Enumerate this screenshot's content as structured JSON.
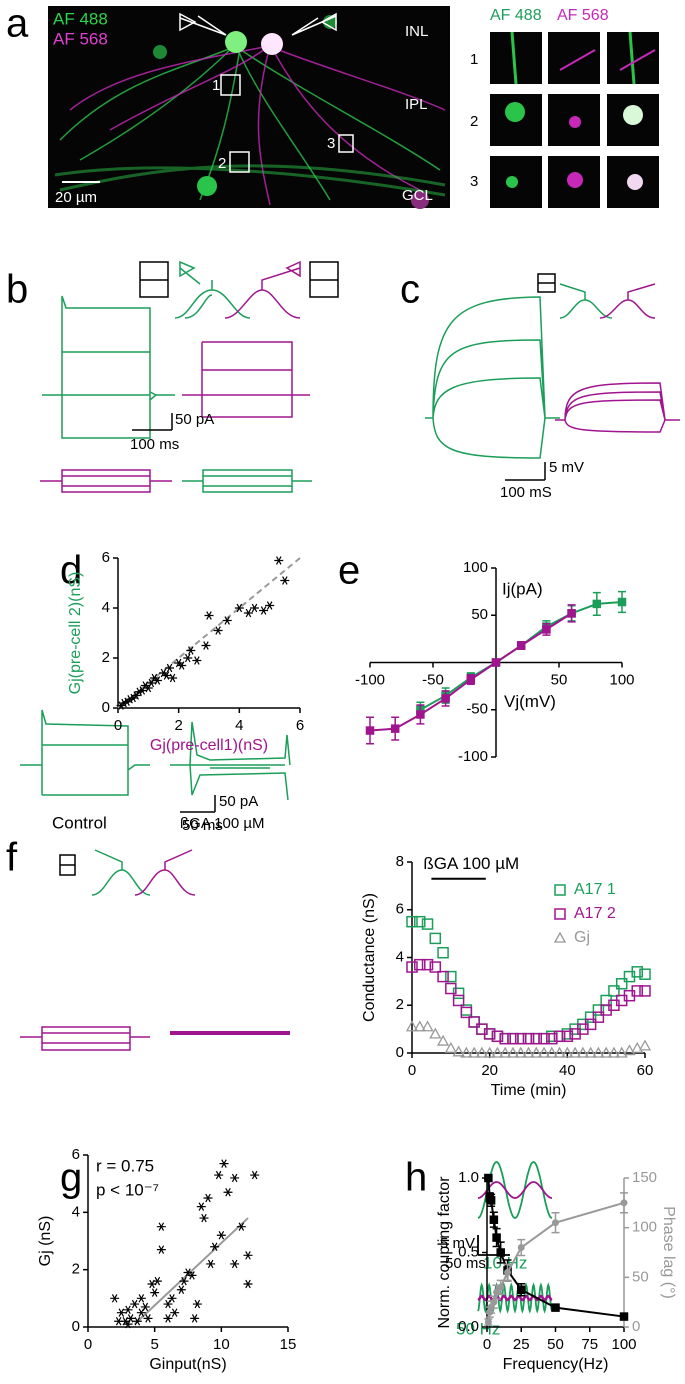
{
  "figure": {
    "panel_labels": [
      "a",
      "b",
      "c",
      "d",
      "e",
      "f",
      "g",
      "h"
    ],
    "a": {
      "channels": [
        "AF 488",
        "AF 568"
      ],
      "layers": [
        "INL",
        "IPL",
        "GCL"
      ],
      "scale_bar": "20 µm",
      "rois": [
        "1",
        "2",
        "3"
      ],
      "rows": [
        "1",
        "2",
        "3"
      ]
    },
    "b": {
      "scale_bar": [
        "50 pA",
        "100 ms"
      ]
    },
    "c": {
      "scale_bar": [
        "5 mV",
        "100 mS"
      ]
    },
    "f": {
      "conditions": [
        "Control",
        "ßGA 100 µM"
      ],
      "scale_bar": [
        "50 pA",
        "50 ms"
      ]
    },
    "h": {
      "scale_bar": [
        "5 mV",
        "50 ms"
      ],
      "frequencies": [
        "10 Hz",
        "50 Hz"
      ]
    }
  },
  "chart_data": [
    {
      "type": "scatter",
      "x_label": "Gj(pre-cell1)(nS)",
      "y_label": "Gj(pre-cell 2)(nS)",
      "x_label_color": "#a0158f",
      "y_label_color": "#1b9e5a",
      "xlim": [
        0,
        6
      ],
      "ylim": [
        0,
        6
      ],
      "xticks": [
        0,
        2,
        4,
        6
      ],
      "yticks": [
        0,
        2,
        4,
        6
      ],
      "series": [
        {
          "color": "#000000",
          "marker": "star",
          "x": [
            0.1,
            0.2,
            0.3,
            0.4,
            0.5,
            0.6,
            0.7,
            0.8,
            0.9,
            1.0,
            1.1,
            1.2,
            1.3,
            1.5,
            1.6,
            1.7,
            1.8,
            2.0,
            2.1,
            2.3,
            2.4,
            2.6,
            2.9,
            3.0,
            3.3,
            3.6,
            4.0,
            4.3,
            4.5,
            4.8,
            5.0,
            5.3,
            5.5
          ],
          "values": [
            0.1,
            0.2,
            0.25,
            0.35,
            0.4,
            0.5,
            0.65,
            0.7,
            0.9,
            0.8,
            1.0,
            1.2,
            1.1,
            1.4,
            1.3,
            1.6,
            1.2,
            1.8,
            1.7,
            2.0,
            2.3,
            1.9,
            2.5,
            3.7,
            3.1,
            3.5,
            4.0,
            3.8,
            4.0,
            3.9,
            4.1,
            5.9,
            5.1
          ]
        }
      ],
      "fit": {
        "x": [
          0,
          6
        ],
        "y": [
          0,
          6
        ],
        "color": "#999999",
        "dashed": true
      }
    },
    {
      "type": "line",
      "axes": "origin",
      "x_label": "Vj(mV)",
      "y_label": "Ij(pA)",
      "xlim": [
        -100,
        100
      ],
      "ylim": [
        -100,
        100
      ],
      "xticks": [
        -100,
        -50,
        50,
        100
      ],
      "yticks": [
        -100,
        -50,
        50,
        100
      ],
      "series": [
        {
          "color": "#1b9e5a",
          "marker": "square-filled",
          "x": [
            -60,
            -40,
            -20,
            0,
            20,
            40,
            60,
            80,
            100
          ],
          "values": [
            -50,
            -35,
            -16,
            0,
            18,
            38,
            52,
            62,
            64
          ],
          "errors": [
            8,
            8,
            5,
            3,
            4,
            6,
            8,
            12,
            11
          ]
        },
        {
          "color": "#a0158f",
          "marker": "square-filled",
          "x": [
            -100,
            -80,
            -60,
            -40,
            -20,
            0,
            20,
            40,
            60
          ],
          "values": [
            -72,
            -70,
            -55,
            -38,
            -18,
            0,
            18,
            35,
            52
          ],
          "errors": [
            14,
            12,
            10,
            8,
            5,
            3,
            4,
            6,
            9
          ]
        }
      ]
    },
    {
      "type": "scatter",
      "x_label": "Time (min)",
      "y_label": "Conductance (nS)",
      "legend": "upper right",
      "xlim": [
        0,
        60
      ],
      "ylim": [
        0,
        8
      ],
      "xticks": [
        0,
        20,
        40,
        60
      ],
      "yticks": [
        0,
        2,
        4,
        6,
        8
      ],
      "annotation": {
        "text": "ßGA 100 µM",
        "x": [
          5,
          19
        ],
        "y": 7.3
      },
      "x": [
        0,
        2,
        4,
        6,
        8,
        10,
        12,
        14,
        16,
        18,
        20,
        22,
        24,
        26,
        28,
        30,
        32,
        34,
        36,
        38,
        40,
        42,
        44,
        46,
        48,
        50,
        52,
        54,
        56,
        58,
        60
      ],
      "series": [
        {
          "name": "A17 1",
          "color": "#1b9e5a",
          "marker": "square",
          "values": [
            5.5,
            5.5,
            5.4,
            4.8,
            4.2,
            3.2,
            2.5,
            1.8,
            1.3,
            1.0,
            0.8,
            0.7,
            0.6,
            0.6,
            0.6,
            0.6,
            0.6,
            0.6,
            0.7,
            0.7,
            0.8,
            1.0,
            1.2,
            1.5,
            1.8,
            2.2,
            2.6,
            2.9,
            3.2,
            3.4,
            3.3
          ]
        },
        {
          "name": "A17 2",
          "color": "#a0158f",
          "marker": "square",
          "values": [
            3.6,
            3.7,
            3.7,
            3.6,
            3.2,
            2.7,
            2.2,
            1.7,
            1.3,
            1.0,
            0.8,
            0.7,
            0.6,
            0.6,
            0.6,
            0.6,
            0.6,
            0.6,
            0.6,
            0.7,
            0.7,
            0.8,
            1.0,
            1.2,
            1.5,
            1.8,
            2.0,
            2.2,
            2.4,
            2.6,
            2.6
          ]
        },
        {
          "name": "Gj",
          "color": "#999999",
          "marker": "triangle",
          "values": [
            1.1,
            1.1,
            1.1,
            0.8,
            0.5,
            0.2,
            0.05,
            0,
            0,
            0,
            0,
            0,
            0,
            0,
            0,
            0,
            0,
            0,
            0,
            0,
            0,
            0,
            0,
            0,
            0,
            0,
            0,
            0,
            0.1,
            0.2,
            0.3
          ]
        }
      ]
    },
    {
      "type": "scatter",
      "x_label": "Ginput(nS)",
      "y_label": "Gj (nS)",
      "texts": [
        "r = 0.75",
        "p < 10⁻⁷"
      ],
      "xlim": [
        0,
        15
      ],
      "ylim": [
        0,
        6
      ],
      "xticks": [
        0,
        5,
        10,
        15
      ],
      "yticks": [
        0,
        2,
        4,
        6
      ],
      "series": [
        {
          "color": "#000000",
          "marker": "star",
          "x": [
            2,
            2.3,
            2.5,
            2.8,
            3,
            3,
            3.2,
            3.5,
            3.7,
            4,
            4,
            4.3,
            4.5,
            4.8,
            5,
            5.2,
            5.5,
            5.5,
            6,
            6,
            6.3,
            6.5,
            7,
            7.2,
            7.5,
            7.8,
            8,
            8.2,
            8.5,
            8.7,
            9,
            9.2,
            9.5,
            9.8,
            10,
            10.2,
            10.5,
            11,
            11,
            11.5,
            12,
            12,
            12.5
          ],
          "values": [
            1,
            0.2,
            0.5,
            0.2,
            0.1,
            0.6,
            0.3,
            0.8,
            0.2,
            0.5,
            1.0,
            0.7,
            0.3,
            1.5,
            1.2,
            1.6,
            2.7,
            3.5,
            0.3,
            0.8,
            1.0,
            0.5,
            1.3,
            1.6,
            1.9,
            1.8,
            0.3,
            0.8,
            4.2,
            3.8,
            4.5,
            2.2,
            2.8,
            5.3,
            3.2,
            5.7,
            4.7,
            2.2,
            5.2,
            3.5,
            2.5,
            1.5,
            5.3
          ]
        }
      ],
      "fit": {
        "x": [
          3.5,
          12
        ],
        "y": [
          0.1,
          3.8
        ],
        "color": "#999999",
        "dashed": false
      }
    },
    {
      "type": "line",
      "x_label": "Frequency(Hz)",
      "y_label": "Norm. coupling factor",
      "y2_label": "Phase lag (°)",
      "y2_color": "#999999",
      "xlim": [
        0,
        100
      ],
      "ylim": [
        0,
        1
      ],
      "y2lim": [
        0,
        150
      ],
      "xticks": [
        0,
        25,
        50,
        75,
        100
      ],
      "yticks": [
        {
          "value": 0,
          "label": "0.0"
        },
        0.5,
        {
          "value": 1,
          "label": "1.0"
        }
      ],
      "y2ticks": [
        0,
        50,
        100,
        150
      ],
      "x": [
        1,
        2,
        3,
        5,
        7,
        10,
        15,
        25,
        50,
        100
      ],
      "series": [
        {
          "color": "#000000",
          "marker": "square-filled",
          "values": [
            1.0,
            0.87,
            0.85,
            0.72,
            0.6,
            0.5,
            0.38,
            0.25,
            0.13,
            0.07
          ],
          "errors": [
            0.01,
            0.03,
            0.04,
            0.05,
            0.06,
            0.07,
            0.07,
            0.04,
            0.02,
            0.01
          ]
        },
        {
          "color": "#999999",
          "marker": "circle",
          "axis": "y2",
          "values": [
            5,
            15,
            20,
            25,
            35,
            40,
            55,
            80,
            105,
            125
          ],
          "errors": [
            3,
            5,
            6,
            6,
            7,
            7,
            8,
            8,
            10,
            10
          ]
        }
      ]
    }
  ]
}
